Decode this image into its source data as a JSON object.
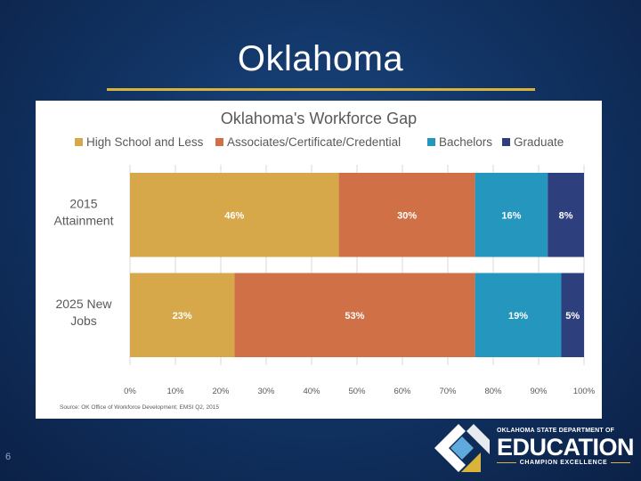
{
  "slide": {
    "title": "Oklahoma",
    "page_number": "6"
  },
  "logo": {
    "line1": "OKLAHOMA STATE DEPARTMENT OF",
    "line2": "EDUCATION",
    "line3": "CHAMPION EXCELLENCE",
    "colors": {
      "gold": "#d9b43a",
      "light_blue": "#5fa9dc",
      "white": "#ffffff"
    }
  },
  "chart_data": {
    "type": "bar",
    "orientation": "horizontal",
    "stacked": true,
    "title": "Oklahoma's Workforce Gap",
    "categories": [
      "2015 Attainment",
      "2025 New Jobs"
    ],
    "category_lines": [
      [
        "2015",
        "Attainment"
      ],
      [
        "2025 New",
        "Jobs"
      ]
    ],
    "series": [
      {
        "name": "High School and Less",
        "values": [
          46,
          23
        ],
        "labels": [
          "46%",
          "23%"
        ],
        "color": "#d6a84a"
      },
      {
        "name": "Associates/Certificate/Credential",
        "values": [
          30,
          53
        ],
        "labels": [
          "30%",
          "53%"
        ],
        "color": "#cf7046"
      },
      {
        "name": "Bachelors",
        "values": [
          16,
          19
        ],
        "labels": [
          "16%",
          "19%"
        ],
        "color": "#2596be"
      },
      {
        "name": "Graduate",
        "values": [
          8,
          5
        ],
        "labels": [
          "8%",
          "5%"
        ],
        "color": "#2e3f7e"
      }
    ],
    "xlim": [
      0,
      100
    ],
    "xticks": [
      "0%",
      "10%",
      "20%",
      "30%",
      "40%",
      "50%",
      "60%",
      "70%",
      "80%",
      "90%",
      "100%"
    ],
    "grid": true,
    "legend": "top",
    "source": "Source: OK Office of Workforce Development; EMSI Q2, 2015"
  }
}
